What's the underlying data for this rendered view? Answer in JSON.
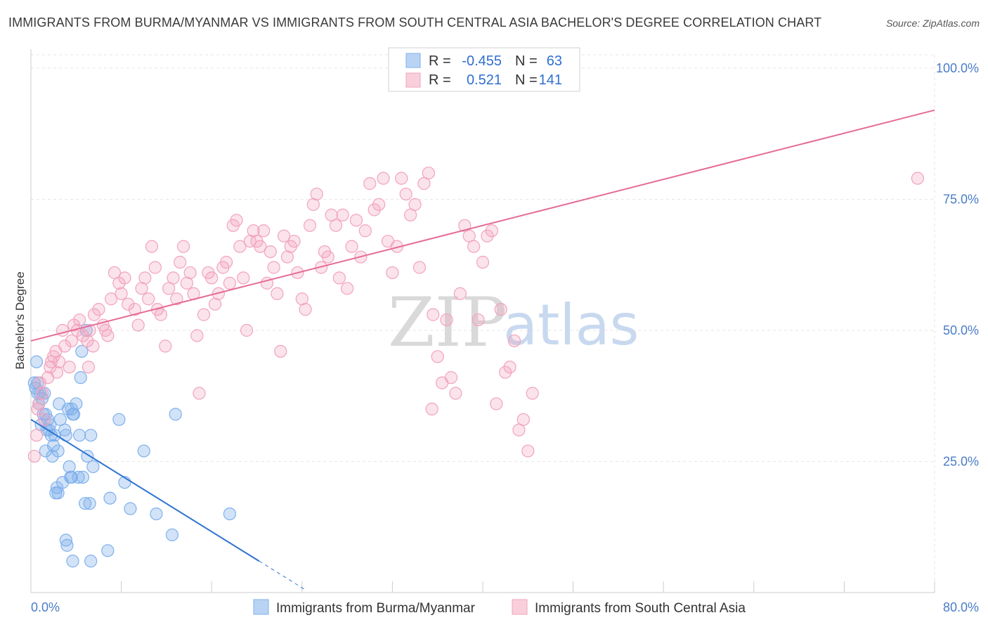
{
  "title": "IMMIGRANTS FROM BURMA/MYANMAR VS IMMIGRANTS FROM SOUTH CENTRAL ASIA BACHELOR'S DEGREE CORRELATION CHART",
  "source": "Source: ZipAtlas.com",
  "watermark": {
    "zip": "ZIP",
    "atlas": "atlas"
  },
  "legend": {
    "r_label": "R =",
    "n_label": "N =",
    "rows": [
      {
        "r": "-0.455",
        "n": "63",
        "color": "#7fb0ec"
      },
      {
        "r": "0.521",
        "n": "141",
        "color": "#f2a3bd"
      }
    ]
  },
  "chart_data": {
    "type": "scatter",
    "xlabel": "",
    "ylabel": "Bachelor's Degree",
    "xlim": [
      0,
      80
    ],
    "ylim": [
      0,
      100
    ],
    "x_tick_labels": [
      "0.0%",
      "80.0%"
    ],
    "y_ticks": [
      25,
      50,
      75,
      100
    ],
    "y_tick_labels": [
      "25.0%",
      "50.0%",
      "75.0%",
      "100.0%"
    ],
    "grid": true,
    "legend_position": "top-center",
    "series": [
      {
        "name": "Immigrants from Burma/Myanmar",
        "color": "#7fb0ec",
        "line_color": "#2f74d0",
        "trend": {
          "x0": 0,
          "y0": 33.0,
          "x1": 20.2,
          "y1": 6.0,
          "dash_to_x": 24.2
        },
        "points": [
          [
            0.3,
            40
          ],
          [
            0.4,
            39
          ],
          [
            0.5,
            44
          ],
          [
            0.6,
            38
          ],
          [
            0.8,
            38
          ],
          [
            1.0,
            37
          ],
          [
            1.2,
            38
          ],
          [
            0.7,
            36
          ],
          [
            1.3,
            34
          ],
          [
            1.5,
            33
          ],
          [
            0.9,
            32
          ],
          [
            1.4,
            31
          ],
          [
            1.7,
            32
          ],
          [
            1.8,
            30
          ],
          [
            2.0,
            28
          ],
          [
            1.3,
            27
          ],
          [
            2.4,
            27
          ],
          [
            2.5,
            36
          ],
          [
            2.6,
            33
          ],
          [
            3.0,
            31
          ],
          [
            3.1,
            30
          ],
          [
            3.3,
            35
          ],
          [
            3.6,
            35
          ],
          [
            3.7,
            34
          ],
          [
            4.0,
            36
          ],
          [
            4.4,
            41
          ],
          [
            4.3,
            30
          ],
          [
            3.8,
            34
          ],
          [
            4.5,
            46
          ],
          [
            4.9,
            50
          ],
          [
            5.3,
            30
          ],
          [
            5.0,
            26
          ],
          [
            5.5,
            24
          ],
          [
            4.6,
            22
          ],
          [
            3.5,
            22
          ],
          [
            2.8,
            21
          ],
          [
            2.2,
            19
          ],
          [
            2.3,
            20
          ],
          [
            2.4,
            19
          ],
          [
            4.2,
            22
          ],
          [
            3.4,
            24
          ],
          [
            4.8,
            17
          ],
          [
            5.2,
            17
          ],
          [
            7.0,
            18
          ],
          [
            8.3,
            21
          ],
          [
            7.8,
            33
          ],
          [
            10.0,
            27
          ],
          [
            12.8,
            34
          ],
          [
            8.8,
            16
          ],
          [
            11.1,
            15
          ],
          [
            12.5,
            11
          ],
          [
            17.6,
            15
          ],
          [
            3.1,
            10
          ],
          [
            3.2,
            9
          ],
          [
            3.7,
            6
          ],
          [
            5.3,
            6
          ],
          [
            6.8,
            8
          ],
          [
            1.6,
            31
          ],
          [
            2.1,
            30
          ],
          [
            1.1,
            34
          ],
          [
            0.6,
            40
          ],
          [
            3.6,
            22
          ],
          [
            1.9,
            26
          ]
        ]
      },
      {
        "name": "Immigrants from South Central Asia",
        "color": "#f2a3bd",
        "line_color": "#e56a98",
        "trend": {
          "x0": 0,
          "y0": 48.0,
          "x1": 80,
          "y1": 92.0
        },
        "points": [
          [
            0.3,
            26
          ],
          [
            0.5,
            30
          ],
          [
            0.6,
            35
          ],
          [
            0.7,
            36
          ],
          [
            0.8,
            40
          ],
          [
            1.0,
            38
          ],
          [
            1.2,
            33
          ],
          [
            1.5,
            41
          ],
          [
            1.7,
            43
          ],
          [
            1.8,
            44
          ],
          [
            2.0,
            45
          ],
          [
            2.2,
            46
          ],
          [
            2.3,
            42
          ],
          [
            2.5,
            44
          ],
          [
            2.8,
            50
          ],
          [
            3.0,
            47
          ],
          [
            3.4,
            43
          ],
          [
            3.6,
            48
          ],
          [
            3.8,
            51
          ],
          [
            4.1,
            50
          ],
          [
            4.3,
            52
          ],
          [
            4.6,
            49
          ],
          [
            5.0,
            48
          ],
          [
            5.2,
            50
          ],
          [
            5.6,
            53
          ],
          [
            5.5,
            47
          ],
          [
            5.1,
            43
          ],
          [
            6.0,
            54
          ],
          [
            6.4,
            51
          ],
          [
            6.6,
            50
          ],
          [
            6.8,
            49
          ],
          [
            7.1,
            56
          ],
          [
            7.4,
            61
          ],
          [
            7.8,
            59
          ],
          [
            8.0,
            57
          ],
          [
            8.3,
            60
          ],
          [
            8.6,
            55
          ],
          [
            9.2,
            54
          ],
          [
            9.5,
            51
          ],
          [
            9.8,
            58
          ],
          [
            10.1,
            60
          ],
          [
            10.4,
            56
          ],
          [
            10.7,
            66
          ],
          [
            11.0,
            62
          ],
          [
            11.2,
            54
          ],
          [
            11.5,
            53
          ],
          [
            11.9,
            47
          ],
          [
            12.2,
            58
          ],
          [
            12.6,
            60
          ],
          [
            12.9,
            56
          ],
          [
            13.2,
            63
          ],
          [
            13.5,
            66
          ],
          [
            13.8,
            59
          ],
          [
            14.1,
            61
          ],
          [
            14.4,
            57
          ],
          [
            14.7,
            49
          ],
          [
            14.9,
            38
          ],
          [
            15.3,
            53
          ],
          [
            15.7,
            61
          ],
          [
            16.0,
            60
          ],
          [
            16.3,
            55
          ],
          [
            16.6,
            57
          ],
          [
            17.0,
            62
          ],
          [
            17.3,
            63
          ],
          [
            17.6,
            59
          ],
          [
            17.9,
            70
          ],
          [
            18.2,
            71
          ],
          [
            18.5,
            66
          ],
          [
            18.8,
            60
          ],
          [
            19.1,
            50
          ],
          [
            19.4,
            67
          ],
          [
            19.7,
            69
          ],
          [
            20.0,
            67
          ],
          [
            20.3,
            66
          ],
          [
            20.6,
            69
          ],
          [
            20.9,
            59
          ],
          [
            21.2,
            65
          ],
          [
            21.5,
            62
          ],
          [
            21.8,
            57
          ],
          [
            22.1,
            46
          ],
          [
            22.4,
            68
          ],
          [
            22.7,
            64
          ],
          [
            23.0,
            66
          ],
          [
            23.3,
            67
          ],
          [
            23.6,
            61
          ],
          [
            24.0,
            56
          ],
          [
            24.3,
            54
          ],
          [
            24.7,
            70
          ],
          [
            25.0,
            74
          ],
          [
            25.3,
            76
          ],
          [
            25.7,
            62
          ],
          [
            26.0,
            65
          ],
          [
            26.3,
            64
          ],
          [
            26.6,
            72
          ],
          [
            27.0,
            70
          ],
          [
            27.3,
            60
          ],
          [
            27.6,
            72
          ],
          [
            28.0,
            58
          ],
          [
            28.4,
            66
          ],
          [
            28.8,
            71
          ],
          [
            29.2,
            64
          ],
          [
            29.6,
            69
          ],
          [
            30.0,
            78
          ],
          [
            30.4,
            73
          ],
          [
            30.8,
            74
          ],
          [
            31.2,
            79
          ],
          [
            31.6,
            67
          ],
          [
            32.0,
            61
          ],
          [
            32.4,
            66
          ],
          [
            32.8,
            79
          ],
          [
            33.2,
            76
          ],
          [
            33.6,
            72
          ],
          [
            34.0,
            74
          ],
          [
            34.4,
            62
          ],
          [
            34.8,
            78
          ],
          [
            35.2,
            80
          ],
          [
            35.6,
            53
          ],
          [
            36.0,
            45
          ],
          [
            36.4,
            40
          ],
          [
            36.8,
            52
          ],
          [
            37.2,
            41
          ],
          [
            37.6,
            38
          ],
          [
            38.0,
            57
          ],
          [
            38.4,
            70
          ],
          [
            38.8,
            68
          ],
          [
            39.2,
            66
          ],
          [
            39.6,
            52
          ],
          [
            40.0,
            63
          ],
          [
            40.4,
            68
          ],
          [
            40.8,
            69
          ],
          [
            41.2,
            36
          ],
          [
            41.6,
            54
          ],
          [
            42.0,
            42
          ],
          [
            42.4,
            43
          ],
          [
            42.8,
            48
          ],
          [
            43.2,
            31
          ],
          [
            43.6,
            33
          ],
          [
            44.0,
            27
          ],
          [
            44.4,
            38
          ],
          [
            78.5,
            79
          ],
          [
            35.5,
            35
          ]
        ]
      }
    ]
  },
  "bottom_legend": [
    {
      "label": "Immigrants from Burma/Myanmar",
      "color": "#7fb0ec"
    },
    {
      "label": "Immigrants from South Central Asia",
      "color": "#f2a3bd"
    }
  ]
}
